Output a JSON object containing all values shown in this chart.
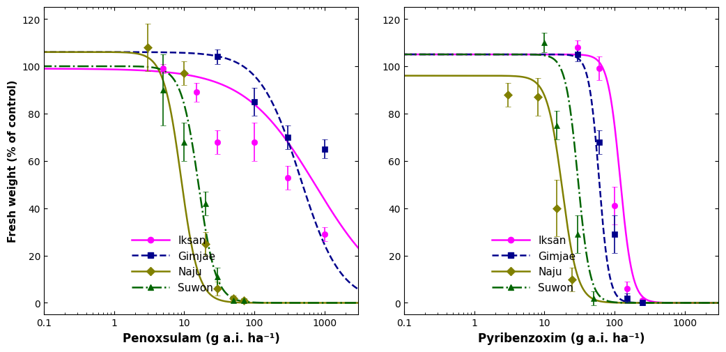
{
  "title_left": "Penoxsulam (g a.i. ha⁻¹)",
  "title_right": "Pyribenzoxim (g a.i. ha⁻¹)",
  "ylabel": "Fresh weight (% of control)",
  "xlim": [
    0.1,
    3000
  ],
  "ylim": [
    -5,
    125
  ],
  "yticks": [
    0,
    20,
    40,
    60,
    80,
    100,
    120
  ],
  "colors": {
    "Iksan": "#ff00ff",
    "Gimjae": "#00008b",
    "Naju": "#808000",
    "Suwon": "#006400"
  },
  "pnx_params": {
    "Iksan": {
      "upper": 99,
      "lower": 0,
      "ED50": 750,
      "slope": 0.85
    },
    "Gimjae": {
      "upper": 106,
      "lower": 0,
      "ED50": 450,
      "slope": 1.5
    },
    "Naju": {
      "upper": 106,
      "lower": 0,
      "ED50": 9,
      "slope": 3.5
    },
    "Suwon": {
      "upper": 100,
      "lower": 0,
      "ED50": 16,
      "slope": 3.5
    }
  },
  "pbx_params": {
    "Iksan": {
      "upper": 105,
      "lower": 0,
      "ED50": 120,
      "slope": 5.0
    },
    "Gimjae": {
      "upper": 105,
      "lower": 0,
      "ED50": 60,
      "slope": 6.0
    },
    "Naju": {
      "upper": 96,
      "lower": 0,
      "ED50": 18,
      "slope": 4.0
    },
    "Suwon": {
      "upper": 105,
      "lower": 0,
      "ED50": 30,
      "slope": 5.0
    }
  },
  "pnx_data": {
    "Iksan": {
      "x": [
        5,
        15,
        30,
        100,
        300,
        1000
      ],
      "y": [
        99,
        89,
        68,
        68,
        53,
        29
      ],
      "yerr": [
        2,
        4,
        5,
        8,
        5,
        3
      ]
    },
    "Gimjae": {
      "x": [
        30,
        100,
        300,
        1000
      ],
      "y": [
        104,
        85,
        70,
        65
      ],
      "yerr": [
        3,
        6,
        5,
        4
      ]
    },
    "Naju": {
      "x": [
        3,
        10,
        20,
        30,
        50,
        70
      ],
      "y": [
        108,
        97,
        25,
        6,
        2,
        1
      ],
      "yerr": [
        10,
        5,
        5,
        3,
        1,
        1
      ]
    },
    "Suwon": {
      "x": [
        5,
        10,
        20,
        30,
        50,
        70
      ],
      "y": [
        90,
        68,
        42,
        11,
        1,
        1
      ],
      "yerr": [
        15,
        8,
        5,
        4,
        1,
        1
      ]
    }
  },
  "pbx_data": {
    "Iksan": {
      "x": [
        30,
        60,
        100,
        150,
        250
      ],
      "y": [
        108,
        99,
        41,
        6,
        1
      ],
      "yerr": [
        3,
        5,
        8,
        3,
        1
      ]
    },
    "Gimjae": {
      "x": [
        30,
        60,
        100,
        150,
        250
      ],
      "y": [
        105,
        68,
        29,
        2,
        0
      ],
      "yerr": [
        3,
        5,
        8,
        2,
        1
      ]
    },
    "Naju": {
      "x": [
        3,
        8,
        15,
        25
      ],
      "y": [
        88,
        87,
        40,
        10
      ],
      "yerr": [
        5,
        8,
        12,
        5
      ]
    },
    "Suwon": {
      "x": [
        10,
        15,
        30,
        50
      ],
      "y": [
        110,
        75,
        29,
        2
      ],
      "yerr": [
        4,
        6,
        8,
        3
      ]
    }
  },
  "markers": {
    "Iksan": "o",
    "Gimjae": "s",
    "Naju": "D",
    "Suwon": "^"
  },
  "line_styles": {
    "Iksan": "-",
    "Gimjae": "--",
    "Naju": "-",
    "Suwon": "-."
  },
  "biotypes": [
    "Iksan",
    "Gimjae",
    "Naju",
    "Suwon"
  ]
}
